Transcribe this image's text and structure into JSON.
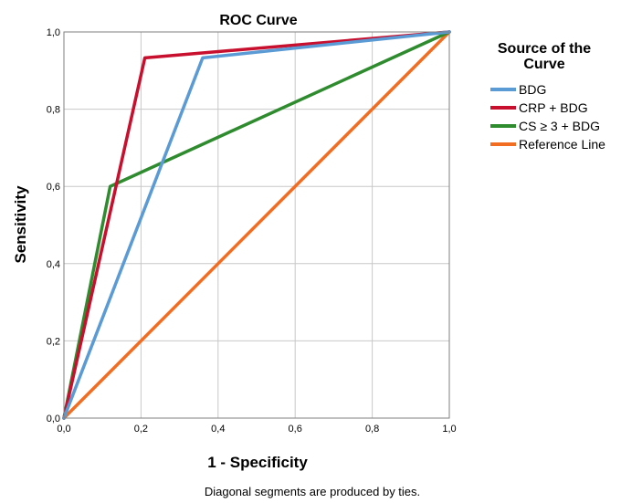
{
  "chart_data": {
    "type": "line",
    "title": "ROC Curve",
    "xlabel": "1 - Specificity",
    "ylabel": "Sensitivity",
    "xlim": [
      0,
      1
    ],
    "ylim": [
      0,
      1
    ],
    "x_ticks": [
      "0,0",
      "0,2",
      "0,4",
      "0,6",
      "0,8",
      "1,0"
    ],
    "y_ticks": [
      "0,0",
      "0,2",
      "0,4",
      "0,6",
      "0,8",
      "1,0"
    ],
    "grid": true,
    "legend_title": "Source of the Curve",
    "legend_position": "right",
    "series": [
      {
        "name": "BDG",
        "color": "#5b9bd5",
        "x": [
          0,
          0.36,
          1
        ],
        "y": [
          0,
          0.933,
          1
        ]
      },
      {
        "name": "CRP + BDG",
        "color": "#c8102e",
        "x": [
          0,
          0.21,
          1
        ],
        "y": [
          0,
          0.933,
          1
        ]
      },
      {
        "name": "CS ≥ 3 + BDG",
        "color": "#2e8b2e",
        "x": [
          0,
          0.12,
          1
        ],
        "y": [
          0,
          0.6,
          1
        ]
      },
      {
        "name": "Reference Line",
        "color": "#f26d21",
        "x": [
          0,
          1
        ],
        "y": [
          0,
          1
        ]
      }
    ],
    "footnote": "Diagonal segments are produced by ties."
  }
}
